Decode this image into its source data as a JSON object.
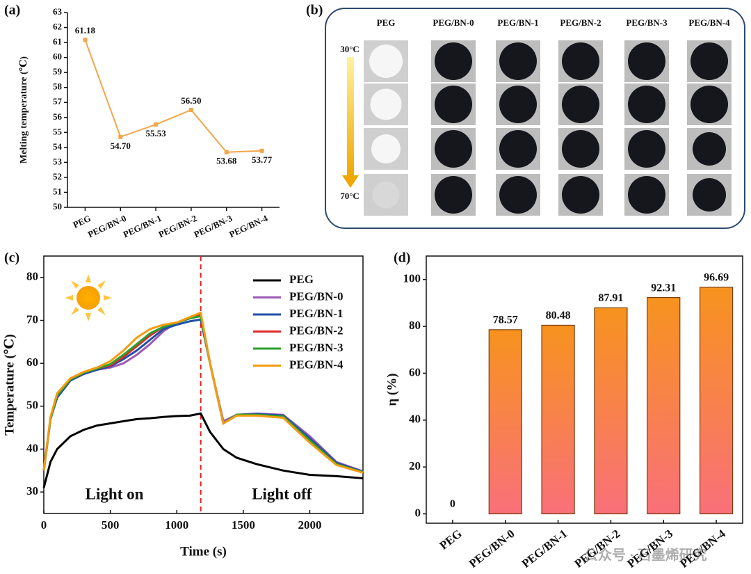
{
  "panel_labels": [
    "(a)",
    "(b)",
    "(c)",
    "(d)"
  ],
  "chart_data": [
    {
      "type": "line",
      "y_label": "Melting temperature (℃)",
      "categories": [
        "PEG",
        "PEG/BN-0",
        "PEG/BN-1",
        "PEG/BN-2",
        "PEG/BN-3",
        "PEG/BN-4"
      ],
      "values": [
        61.18,
        54.7,
        55.53,
        56.5,
        53.68,
        53.77
      ],
      "value_labels": [
        "61.18",
        "54.70",
        "55.53",
        "56.50",
        "53.68",
        "53.77"
      ],
      "color": "#f5a54a",
      "ylim": [
        50,
        63
      ],
      "yticks": [
        50,
        51,
        52,
        53,
        54,
        55,
        56,
        57,
        58,
        59,
        60,
        61,
        62,
        63
      ]
    },
    {
      "type": "line",
      "x_label": "Time (s)",
      "y_label": "Temperature (℃)",
      "x": [
        0,
        50,
        100,
        200,
        300,
        400,
        500,
        600,
        700,
        800,
        900,
        1000,
        1100,
        1180,
        1250,
        1350,
        1450,
        1600,
        1800,
        2000,
        2200,
        2400
      ],
      "series": [
        {
          "name": "PEG",
          "color": "#000000",
          "values": [
            31,
            37,
            40,
            43,
            44.5,
            45.5,
            46,
            46.5,
            47,
            47.2,
            47.5,
            47.7,
            47.8,
            48.3,
            44,
            40,
            38,
            36.5,
            35,
            34,
            33.7,
            33.2
          ]
        },
        {
          "name": "PEG/BN-0",
          "color": "#9b59b6",
          "values": [
            35,
            47,
            52,
            56,
            57.5,
            58.5,
            59,
            60,
            62,
            64.5,
            67.5,
            69.5,
            70.5,
            71,
            60,
            46.5,
            48,
            48.3,
            48,
            43,
            37,
            34.8
          ]
        },
        {
          "name": "PEG/BN-1",
          "color": "#1f4fa8",
          "values": [
            35,
            47,
            52,
            56,
            57.5,
            58.5,
            59.3,
            61,
            63,
            65.5,
            68,
            69,
            69.8,
            70.2,
            60,
            46,
            48,
            48.2,
            47.8,
            42.5,
            36.8,
            34.7
          ]
        },
        {
          "name": "PEG/BN-2",
          "color": "#e02a2a",
          "values": [
            35,
            47,
            52.5,
            56.3,
            57.8,
            58.8,
            59.5,
            61.5,
            64,
            66.5,
            68.5,
            69.5,
            70.5,
            71.5,
            60,
            46,
            48,
            48,
            47.5,
            42,
            36.5,
            34.6
          ]
        },
        {
          "name": "PEG/BN-3",
          "color": "#2ca02c",
          "values": [
            35,
            47,
            52.5,
            56.3,
            57.8,
            58.8,
            59.8,
            62,
            64.5,
            67,
            68.5,
            69.5,
            70.5,
            71,
            60,
            46,
            48,
            48,
            47.6,
            42,
            36.5,
            34.6
          ]
        },
        {
          "name": "PEG/BN-4",
          "color": "#f39c12",
          "values": [
            35,
            47.5,
            53,
            56.5,
            58,
            59,
            60.5,
            63,
            66,
            68,
            69,
            69.5,
            70.8,
            71.8,
            60,
            46,
            47.8,
            47.8,
            47.3,
            41.5,
            36.3,
            34.5
          ]
        }
      ],
      "xlim": [
        0,
        2400
      ],
      "xticks": [
        0,
        500,
        1000,
        1500,
        2000
      ],
      "ylim": [
        25,
        85
      ],
      "yticks": [
        30,
        40,
        50,
        60,
        70,
        80
      ],
      "vline": 1180,
      "vline_color": "#e02020",
      "annotations": [
        "Light on",
        "Light off"
      ],
      "legend": "upper right"
    },
    {
      "type": "bar",
      "y_label": "η (%)",
      "categories": [
        "PEG",
        "PEG/BN-0",
        "PEG/BN-1",
        "PEG/BN-2",
        "PEG/BN-3",
        "PEG/BN-4"
      ],
      "values": [
        0,
        78.57,
        80.48,
        87.91,
        92.31,
        96.69
      ],
      "color": "#f7931e",
      "ylim": [
        -4,
        110
      ],
      "yticks": [
        0,
        20,
        40,
        60,
        80,
        100
      ]
    }
  ],
  "photo_panel": {
    "columns": [
      "PEG",
      "PEG/BN-0",
      "PEG/BN-1",
      "PEG/BN-2",
      "PEG/BN-3",
      "PEG/BN-4"
    ],
    "temperatures": [
      "30°C",
      "70°C"
    ]
  },
  "watermark": "公众号 · 石墨烯研究"
}
